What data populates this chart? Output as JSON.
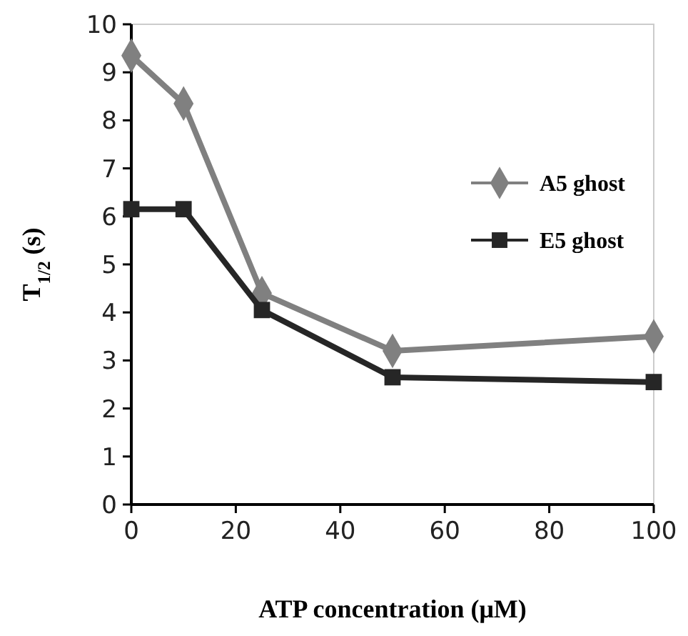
{
  "chart_data": {
    "type": "line",
    "xlabel": "ATP concentration (μM)",
    "ylabel": "T$_{1/2}$ (s)",
    "x": [
      0,
      10,
      25,
      50,
      100
    ],
    "series": [
      {
        "name": "A5 ghost",
        "color": "#808080",
        "marker": "diamond",
        "values": [
          9.35,
          8.35,
          4.4,
          3.2,
          3.5
        ]
      },
      {
        "name": "E5 ghost",
        "color": "#262626",
        "marker": "square",
        "values": [
          6.15,
          6.15,
          4.05,
          2.65,
          2.55
        ]
      }
    ],
    "xlim": [
      0,
      100
    ],
    "xticks": [
      0,
      20,
      40,
      60,
      80,
      100
    ],
    "ylim": [
      0,
      10
    ],
    "yticks": [
      0,
      1,
      2,
      3,
      4,
      5,
      6,
      7,
      8,
      9,
      10
    ],
    "grid": false,
    "legend": "right",
    "line_style": "solid"
  }
}
